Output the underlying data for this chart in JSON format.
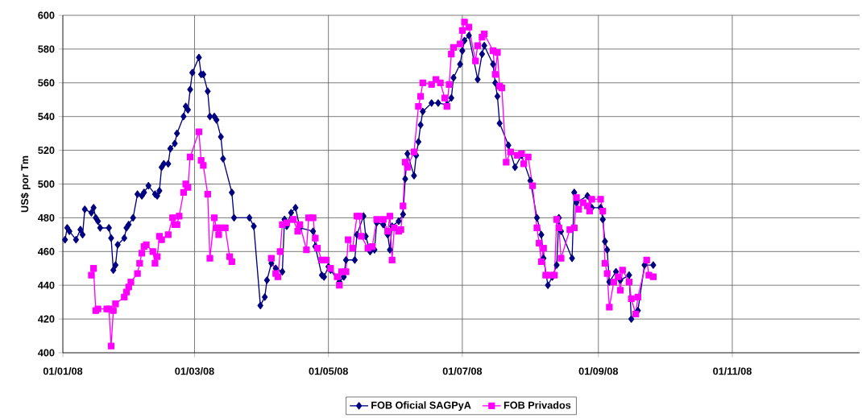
{
  "chart_data": {
    "type": "line",
    "ylabel": "US$ por Tm",
    "xlim": [
      "2008-01-01",
      "2008-12-29"
    ],
    "ylim": [
      400,
      600
    ],
    "xticks": [
      {
        "value": "2008-01-01",
        "label": "01/01/08"
      },
      {
        "value": "2008-03-01",
        "label": "01/03/08"
      },
      {
        "value": "2008-05-01",
        "label": "01/05/08"
      },
      {
        "value": "2008-07-01",
        "label": "01/07/08"
      },
      {
        "value": "2008-09-01",
        "label": "01/09/08"
      },
      {
        "value": "2008-11-01",
        "label": "01/11/08"
      }
    ],
    "yticks": [
      400,
      420,
      440,
      460,
      480,
      500,
      520,
      540,
      560,
      580,
      600
    ],
    "grid": true,
    "legend": "bottom",
    "line_style": "solid",
    "series": [
      {
        "name": "FOB Oficial SAGPyA",
        "color": "#000080",
        "marker": "diamond",
        "x": [
          "2008-01-02",
          "2008-01-03",
          "2008-01-04",
          "2008-01-07",
          "2008-01-09",
          "2008-01-10",
          "2008-01-11",
          "2008-01-14",
          "2008-01-15",
          "2008-01-16",
          "2008-01-17",
          "2008-01-18",
          "2008-01-22",
          "2008-01-23",
          "2008-01-24",
          "2008-01-25",
          "2008-01-26",
          "2008-01-29",
          "2008-01-30",
          "2008-01-31",
          "2008-02-02",
          "2008-02-04",
          "2008-02-06",
          "2008-02-07",
          "2008-02-09",
          "2008-02-12",
          "2008-02-13",
          "2008-02-14",
          "2008-02-15",
          "2008-02-16",
          "2008-02-18",
          "2008-02-19",
          "2008-02-21",
          "2008-02-22",
          "2008-02-25",
          "2008-02-26",
          "2008-02-27",
          "2008-02-28",
          "2008-02-29",
          "2008-03-03",
          "2008-03-04",
          "2008-03-05",
          "2008-03-07",
          "2008-03-08",
          "2008-03-10",
          "2008-03-11",
          "2008-03-13",
          "2008-03-14",
          "2008-03-18",
          "2008-03-19",
          "2008-03-26",
          "2008-03-28",
          "2008-03-31",
          "2008-04-02",
          "2008-04-03",
          "2008-04-05",
          "2008-04-07",
          "2008-04-10",
          "2008-04-11",
          "2008-04-12",
          "2008-04-14",
          "2008-04-16",
          "2008-04-18",
          "2008-04-24",
          "2008-04-25",
          "2008-04-28",
          "2008-04-29",
          "2008-05-01",
          "2008-05-02",
          "2008-05-06",
          "2008-05-08",
          "2008-05-09",
          "2008-05-13",
          "2008-05-14",
          "2008-05-17",
          "2008-05-18",
          "2008-05-20",
          "2008-05-22",
          "2008-05-23",
          "2008-05-26",
          "2008-05-28",
          "2008-05-29",
          "2008-05-30",
          "2008-06-02",
          "2008-06-04",
          "2008-06-05",
          "2008-06-06",
          "2008-06-09",
          "2008-06-10",
          "2008-06-11",
          "2008-06-12",
          "2008-06-13",
          "2008-06-17",
          "2008-06-20",
          "2008-06-24",
          "2008-06-26",
          "2008-06-27",
          "2008-06-30",
          "2008-07-01",
          "2008-07-02",
          "2008-07-04",
          "2008-07-08",
          "2008-07-10",
          "2008-07-11",
          "2008-07-15",
          "2008-07-16",
          "2008-07-17",
          "2008-07-18",
          "2008-07-22",
          "2008-07-25",
          "2008-07-28",
          "2008-08-01",
          "2008-08-04",
          "2008-08-06",
          "2008-08-07",
          "2008-08-09",
          "2008-08-11",
          "2008-08-13",
          "2008-08-14",
          "2008-08-15",
          "2008-08-20",
          "2008-08-21",
          "2008-08-22",
          "2008-08-27",
          "2008-08-29",
          "2008-09-02",
          "2008-09-03",
          "2008-09-04",
          "2008-09-05",
          "2008-09-06",
          "2008-09-09",
          "2008-09-11",
          "2008-09-15",
          "2008-09-16",
          "2008-09-19",
          "2008-09-22",
          "2008-09-26"
        ],
        "values": [
          467,
          474,
          472,
          467,
          473,
          470,
          485,
          483,
          486,
          480,
          478,
          474,
          474,
          468,
          449,
          452,
          464,
          468,
          474,
          476,
          480,
          494,
          493,
          495,
          499,
          494,
          493,
          496,
          510,
          512,
          512,
          521,
          524,
          530,
          540,
          546,
          544,
          556,
          566,
          575,
          565,
          565,
          555,
          540,
          540,
          538,
          528,
          515,
          495,
          480,
          480,
          475,
          428,
          433,
          443,
          453,
          450,
          448,
          479,
          475,
          483,
          486,
          474,
          472,
          463,
          446,
          445,
          451,
          449,
          442,
          445,
          455,
          455,
          470,
          481,
          469,
          460,
          461,
          477,
          476,
          470,
          461,
          475,
          478,
          482,
          503,
          518,
          505,
          517,
          525,
          535,
          543,
          548,
          548,
          547,
          551,
          563,
          571,
          579,
          585,
          588,
          562,
          577,
          582,
          571,
          560,
          552,
          536,
          523,
          510,
          517,
          502,
          480,
          470,
          456,
          440,
          445,
          452,
          480,
          472,
          456,
          495,
          489,
          493,
          486,
          486,
          479,
          466,
          461,
          442,
          448,
          443,
          446,
          420,
          425,
          452,
          452
        ]
      },
      {
        "name": "FOB Privados",
        "color": "#ff00ff",
        "marker": "square",
        "x": [
          "2008-01-14",
          "2008-01-15",
          "2008-01-16",
          "2008-01-17",
          "2008-01-21",
          "2008-01-22",
          "2008-01-23",
          "2008-01-24",
          "2008-01-25",
          "2008-01-29",
          "2008-01-30",
          "2008-01-31",
          "2008-02-01",
          "2008-02-04",
          "2008-02-05",
          "2008-02-06",
          "2008-02-07",
          "2008-02-08",
          "2008-02-11",
          "2008-02-12",
          "2008-02-13",
          "2008-02-14",
          "2008-02-15",
          "2008-02-18",
          "2008-02-20",
          "2008-02-21",
          "2008-02-22",
          "2008-02-23",
          "2008-02-25",
          "2008-02-26",
          "2008-02-27",
          "2008-02-28",
          "2008-03-03",
          "2008-03-04",
          "2008-03-05",
          "2008-03-07",
          "2008-03-08",
          "2008-03-10",
          "2008-03-11",
          "2008-03-12",
          "2008-03-13",
          "2008-03-15",
          "2008-03-17",
          "2008-03-18",
          "2008-03-25",
          "2008-04-05",
          "2008-04-07",
          "2008-04-08",
          "2008-04-09",
          "2008-04-10",
          "2008-04-12",
          "2008-04-15",
          "2008-04-17",
          "2008-04-18",
          "2008-04-21",
          "2008-04-22",
          "2008-04-24",
          "2008-04-25",
          "2008-04-26",
          "2008-04-28",
          "2008-04-30",
          "2008-05-02",
          "2008-05-05",
          "2008-05-06",
          "2008-05-07",
          "2008-05-09",
          "2008-05-10",
          "2008-05-12",
          "2008-05-14",
          "2008-05-15",
          "2008-05-16",
          "2008-05-19",
          "2008-05-21",
          "2008-05-23",
          "2008-05-26",
          "2008-05-28",
          "2008-05-29",
          "2008-05-30",
          "2008-05-31",
          "2008-06-02",
          "2008-06-03",
          "2008-06-04",
          "2008-06-05",
          "2008-06-06",
          "2008-06-09",
          "2008-06-11",
          "2008-06-12",
          "2008-06-13",
          "2008-06-17",
          "2008-06-19",
          "2008-06-21",
          "2008-06-23",
          "2008-06-24",
          "2008-06-25",
          "2008-06-26",
          "2008-06-27",
          "2008-06-30",
          "2008-07-01",
          "2008-07-02",
          "2008-07-04",
          "2008-07-07",
          "2008-07-08",
          "2008-07-10",
          "2008-07-11",
          "2008-07-15",
          "2008-07-16",
          "2008-07-17",
          "2008-07-18",
          "2008-07-19",
          "2008-07-21",
          "2008-07-23",
          "2008-07-26",
          "2008-07-28",
          "2008-07-29",
          "2008-07-31",
          "2008-08-02",
          "2008-08-04",
          "2008-08-05",
          "2008-08-06",
          "2008-08-07",
          "2008-08-08",
          "2008-08-10",
          "2008-08-12",
          "2008-08-13",
          "2008-08-14",
          "2008-08-15",
          "2008-08-19",
          "2008-08-21",
          "2008-08-22",
          "2008-08-23",
          "2008-08-25",
          "2008-08-27",
          "2008-08-28",
          "2008-08-29",
          "2008-09-02",
          "2008-09-03",
          "2008-09-04",
          "2008-09-05",
          "2008-09-06",
          "2008-09-08",
          "2008-09-10",
          "2008-09-11",
          "2008-09-12",
          "2008-09-15",
          "2008-09-16",
          "2008-09-18",
          "2008-09-19",
          "2008-09-23",
          "2008-09-24",
          "2008-09-26"
        ],
        "values": [
          446,
          450,
          425,
          426,
          426,
          426,
          404,
          425,
          429,
          433,
          436,
          439,
          442,
          447,
          453,
          459,
          463,
          464,
          460,
          453,
          457,
          469,
          467,
          470,
          480,
          476,
          476,
          481,
          495,
          500,
          498,
          516,
          531,
          514,
          511,
          494,
          456,
          480,
          474,
          470,
          474,
          474,
          457,
          454,
          null,
          456,
          447,
          445,
          460,
          476,
          477,
          479,
          472,
          476,
          461,
          480,
          480,
          468,
          462,
          455,
          455,
          450,
          445,
          440,
          448,
          448,
          467,
          462,
          481,
          481,
          469,
          462,
          463,
          479,
          479,
          472,
          481,
          455,
          474,
          472,
          473,
          487,
          513,
          510,
          519,
          546,
          552,
          560,
          559,
          562,
          560,
          551,
          546,
          559,
          577,
          581,
          583,
          591,
          596,
          593,
          573,
          582,
          587,
          589,
          579,
          565,
          578,
          558,
          557,
          513,
          519,
          517,
          518,
          512,
          516,
          499,
          474,
          465,
          454,
          462,
          446,
          446,
          446,
          479,
          474,
          456,
          473,
          474,
          492,
          485,
          489,
          487,
          484,
          491,
          491,
          484,
          453,
          447,
          427,
          442,
          445,
          437,
          449,
          442,
          432,
          423,
          433,
          455,
          446,
          445
        ]
      }
    ]
  }
}
